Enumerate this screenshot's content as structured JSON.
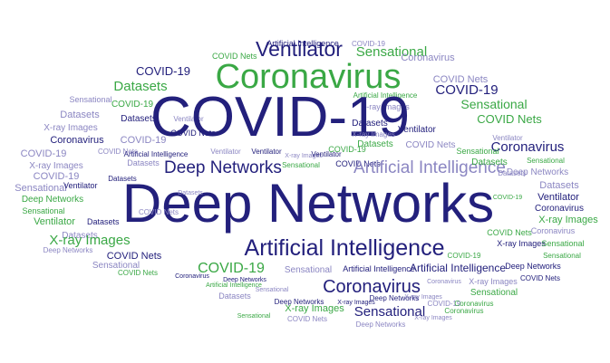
{
  "colors": {
    "navy": "#23207c",
    "green": "#3aa845",
    "light": "#8b86c2"
  },
  "words": [
    {
      "text": "Artificial Intelligence",
      "color": "navy"
    },
    {
      "text": "COVID-19",
      "color": "light"
    },
    {
      "text": "COVID Nets",
      "color": "green"
    },
    {
      "text": "Ventilator",
      "color": "navy"
    },
    {
      "text": "Sensational",
      "color": "green"
    },
    {
      "text": "COVID-19",
      "color": "navy"
    },
    {
      "text": "Coronavirus",
      "color": "light"
    },
    {
      "text": "Coronavirus",
      "color": "green"
    },
    {
      "text": "COVID Nets",
      "color": "light"
    },
    {
      "text": "Datasets",
      "color": "green"
    },
    {
      "text": "Artificial Intelligence",
      "color": "green"
    },
    {
      "text": "COVID-19",
      "color": "navy"
    },
    {
      "text": "Sensational",
      "color": "light"
    },
    {
      "text": "COVID-19",
      "color": "green"
    },
    {
      "text": "X-ray Images",
      "color": "light"
    },
    {
      "text": "Datasets",
      "color": "light"
    },
    {
      "text": "Datasets",
      "color": "navy"
    },
    {
      "text": "Ventilator",
      "color": "light"
    },
    {
      "text": "COVID-19",
      "color": "navy"
    },
    {
      "text": "Sensational",
      "color": "green"
    },
    {
      "text": "X-ray Images",
      "color": "light"
    },
    {
      "text": "Coronavirus",
      "color": "navy"
    },
    {
      "text": "COVID-19",
      "color": "light"
    },
    {
      "text": "COVID Nets",
      "color": "navy"
    },
    {
      "text": "COVID Nets",
      "color": "green"
    },
    {
      "text": "Datasets",
      "color": "navy"
    },
    {
      "text": "X-ray Images",
      "color": "light"
    },
    {
      "text": "Ventilator",
      "color": "navy"
    },
    {
      "text": "Coronavirus",
      "color": "navy"
    },
    {
      "text": "COVID-19",
      "color": "light"
    },
    {
      "text": "Datasets",
      "color": "green"
    },
    {
      "text": "COVID Nets",
      "color": "light"
    },
    {
      "text": "Sensational",
      "color": "green"
    },
    {
      "text": "Artificial Intelligence",
      "color": "navy"
    },
    {
      "text": "Ventilator",
      "color": "light"
    },
    {
      "text": "Ventilator",
      "color": "navy"
    },
    {
      "text": "X-ray Images",
      "color": "light"
    },
    {
      "text": "COVID-19",
      "color": "green"
    },
    {
      "text": "X-ray Images",
      "color": "light"
    },
    {
      "text": "Sensational",
      "color": "green"
    },
    {
      "text": "Datasets",
      "color": "light"
    },
    {
      "text": "Sensational",
      "color": "green"
    },
    {
      "text": "COVID-19",
      "color": "light"
    },
    {
      "text": "Deep Networks",
      "color": "navy"
    },
    {
      "text": "Ventilator",
      "color": "navy"
    },
    {
      "text": "COVID Nets",
      "color": "navy"
    },
    {
      "text": "Artificial Intelligence",
      "color": "light"
    },
    {
      "text": "Deep Networks",
      "color": "light"
    },
    {
      "text": "Datasets",
      "color": "green"
    },
    {
      "text": "Sensational",
      "color": "light"
    },
    {
      "text": "Deep Networks",
      "color": "green"
    },
    {
      "text": "Sensational",
      "color": "green"
    },
    {
      "text": "Ventilator",
      "color": "green"
    },
    {
      "text": "Deep Networks",
      "color": "navy"
    },
    {
      "text": "Datasets",
      "color": "light"
    },
    {
      "text": "Ventilator",
      "color": "navy"
    },
    {
      "text": "Coronavirus",
      "color": "navy"
    },
    {
      "text": "X-ray Images",
      "color": "green"
    },
    {
      "text": "Coronavirus",
      "color": "light"
    },
    {
      "text": "COVID Nets",
      "color": "light"
    },
    {
      "text": "Datasets",
      "color": "light"
    },
    {
      "text": "X-ray Images",
      "color": "green"
    },
    {
      "text": "Artificial Intelligence",
      "color": "navy"
    },
    {
      "text": "COVID Nets",
      "color": "green"
    },
    {
      "text": "X-ray Images",
      "color": "navy"
    },
    {
      "text": "Sensational",
      "color": "green"
    },
    {
      "text": "COVID Nets",
      "color": "navy"
    },
    {
      "text": "Sensational",
      "color": "green"
    },
    {
      "text": "Deep Networks",
      "color": "light"
    },
    {
      "text": "COVID-19",
      "color": "green"
    },
    {
      "text": "Sensational",
      "color": "light"
    },
    {
      "text": "Artificial Intelligence",
      "color": "navy"
    },
    {
      "text": "Artificial Intelligence",
      "color": "navy"
    },
    {
      "text": "Deep Networks",
      "color": "navy"
    },
    {
      "text": "Sensational",
      "color": "light"
    },
    {
      "text": "Deep Networks",
      "color": "navy"
    },
    {
      "text": "COVID Nets",
      "color": "green"
    },
    {
      "text": "COVID Nets",
      "color": "navy"
    },
    {
      "text": "X-ray Images",
      "color": "light"
    },
    {
      "text": "Sensational",
      "color": "green"
    },
    {
      "text": "Coronavirus",
      "color": "navy"
    },
    {
      "text": "Artificial Intelligence",
      "color": "green"
    },
    {
      "text": "Datasets",
      "color": "light"
    },
    {
      "text": "Deep Networks",
      "color": "navy"
    },
    {
      "text": "Deep Networks",
      "color": "navy"
    },
    {
      "text": "X-ray Images",
      "color": "green"
    },
    {
      "text": "COVID-19",
      "color": "light"
    },
    {
      "text": "X-ray Images",
      "color": "navy"
    },
    {
      "text": "X-ray Images",
      "color": "light"
    },
    {
      "text": "Coronavirus",
      "color": "green"
    },
    {
      "text": "Sensational",
      "color": "navy"
    },
    {
      "text": "X-ray Images",
      "color": "light"
    },
    {
      "text": "COVID Nets",
      "color": "light"
    },
    {
      "text": "Deep Networks",
      "color": "light"
    },
    {
      "text": "Datasets",
      "color": "navy"
    },
    {
      "text": "Coronavirus",
      "color": "green"
    },
    {
      "text": "Ventilator",
      "color": "navy"
    },
    {
      "text": "Sensational",
      "color": "green"
    },
    {
      "text": "Datasets",
      "color": "navy"
    },
    {
      "text": "COVID-19",
      "color": "green"
    },
    {
      "text": "Datasets",
      "color": "light"
    },
    {
      "text": "Ventilator",
      "color": "light"
    },
    {
      "text": "COVID Nets",
      "color": "light"
    },
    {
      "text": "Coronavirus",
      "color": "light"
    },
    {
      "text": "Sensational",
      "color": "light"
    },
    {
      "text": "Coronavirus",
      "color": "navy"
    },
    {
      "text": "Datasets",
      "color": "light"
    },
    {
      "text": "COVID-19",
      "color": "green"
    }
  ]
}
